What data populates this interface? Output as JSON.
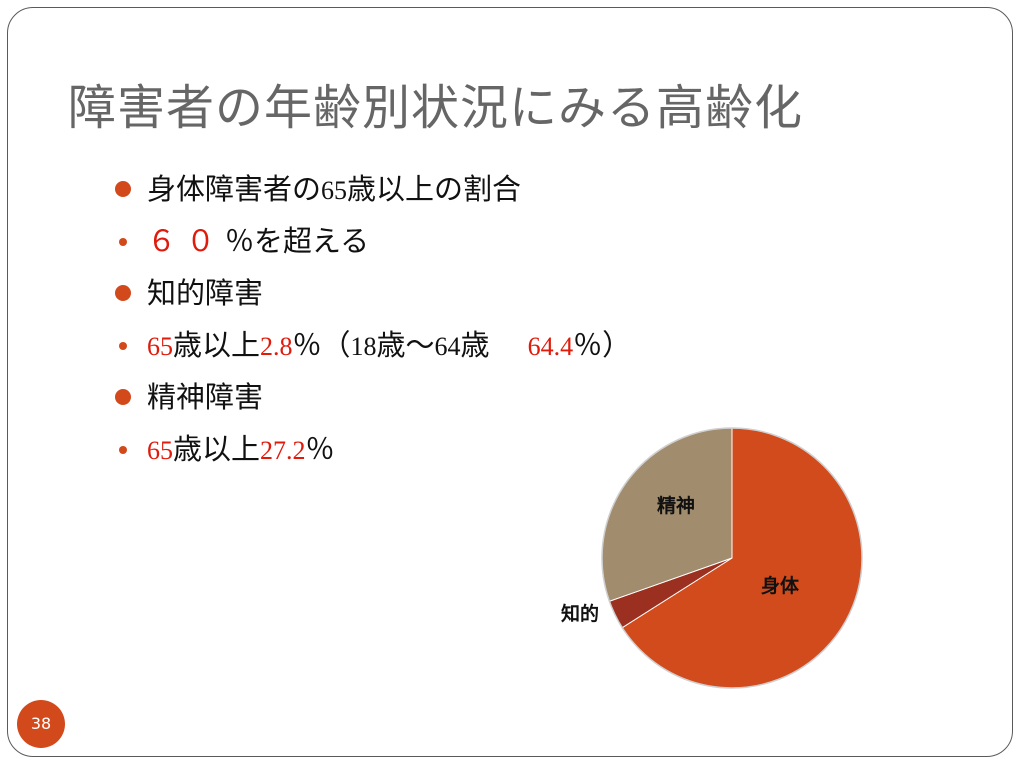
{
  "title": "障害者の年齢別状況にみる高齢化",
  "bullets": [
    {
      "level": "main",
      "parts": [
        "身体障害者の",
        "65",
        "歳以上の割合"
      ]
    },
    {
      "level": "sub",
      "parts": [
        "６０",
        "％を超える"
      ]
    },
    {
      "level": "main",
      "parts": [
        "知的障害"
      ]
    },
    {
      "level": "sub",
      "parts": [
        "65",
        "歳以上",
        "2.8",
        "％（",
        "18",
        "歳～",
        "64",
        "歳",
        "64.4",
        "％）"
      ]
    },
    {
      "level": "main",
      "parts": [
        "精神障害"
      ]
    },
    {
      "level": "sub",
      "parts": [
        "65",
        "歳以上",
        "27.2",
        "％"
      ]
    }
  ],
  "chart_data": {
    "type": "pie",
    "labels": [
      "身体",
      "知的",
      "精神"
    ],
    "values": [
      66.0,
      3.6,
      30.4
    ],
    "colors": [
      "#d14b1c",
      "#9c3020",
      "#a18c6d"
    ],
    "start": "12 o'clock",
    "direction": "clockwise",
    "legend": "none"
  },
  "slide_number": "38",
  "colors": {
    "accent": "#d24a1b",
    "highlight": "#e01b0c",
    "title": "#666666"
  }
}
